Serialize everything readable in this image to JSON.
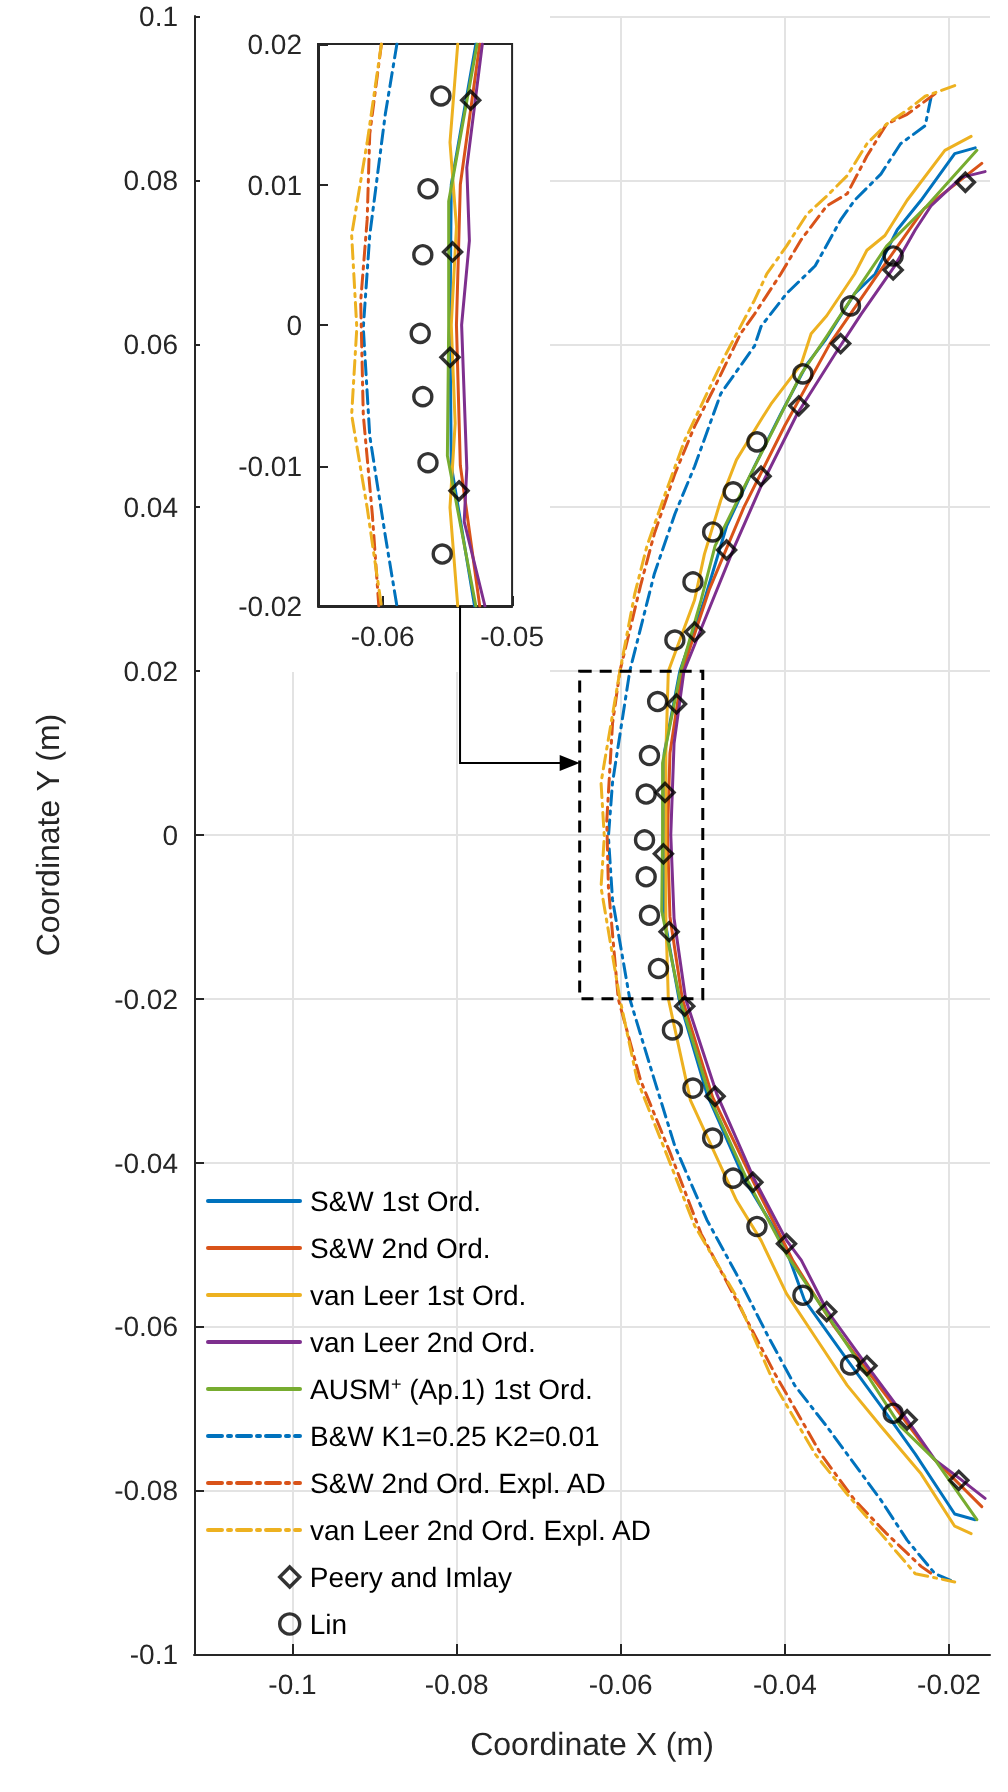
{
  "chart_data": [
    {
      "type": "line",
      "xlabel": "Coordinate X (m)",
      "ylabel": "Coordinate Y (m)",
      "xlim": [
        -0.112,
        -0.015
      ],
      "ylim": [
        -0.1,
        0.1
      ],
      "xticks": [
        -0.1,
        -0.08,
        -0.06,
        -0.04,
        -0.02
      ],
      "yticks": [
        -0.1,
        -0.08,
        -0.06,
        -0.04,
        -0.02,
        0,
        0.02,
        0.04,
        0.06,
        0.08,
        0.1
      ],
      "grid": true,
      "legend": "bottom left",
      "series": [
        {
          "name": "S&W 1st Ord.",
          "color": "#0072bd",
          "type": "line",
          "marker": "none",
          "line_style": "solid",
          "x": [
            -0.0168,
            -0.0193,
            -0.0234,
            -0.0263,
            -0.029,
            -0.0315,
            -0.0351,
            -0.0373,
            -0.0405,
            -0.0437,
            -0.0471,
            -0.0498,
            -0.0528,
            -0.0547,
            -0.0548,
            -0.0547,
            -0.0529,
            -0.0495,
            -0.0449,
            -0.04,
            -0.0376,
            -0.0324,
            -0.0283,
            -0.0241,
            -0.0193,
            -0.0168
          ],
          "values": [
            0.0839,
            0.0832,
            0.0775,
            0.0739,
            0.0685,
            0.0661,
            0.0604,
            0.0575,
            0.0514,
            0.045,
            0.0377,
            0.0287,
            0.02,
            0.01,
            0,
            -0.01,
            -0.02,
            -0.0316,
            -0.0421,
            -0.0502,
            -0.0568,
            -0.0641,
            -0.0697,
            -0.0756,
            -0.0829,
            -0.0836
          ]
        },
        {
          "name": "S&W 2nd Ord.",
          "color": "#d95319",
          "type": "line",
          "marker": "none",
          "line_style": "solid",
          "x": [
            -0.016,
            -0.023,
            -0.029,
            -0.0345,
            -0.04,
            -0.045,
            -0.0492,
            -0.0525,
            -0.054,
            -0.0543,
            -0.054,
            -0.0525,
            -0.0488,
            -0.044,
            -0.039,
            -0.034,
            -0.028,
            -0.022,
            -0.016
          ],
          "values": [
            0.082,
            0.0765,
            0.068,
            0.06,
            0.05,
            0.04,
            0.03,
            0.02,
            0.01,
            0,
            -0.01,
            -0.02,
            -0.032,
            -0.042,
            -0.052,
            -0.06,
            -0.068,
            -0.076,
            -0.082
          ]
        },
        {
          "name": "van Leer 1st Ord.",
          "color": "#edb120",
          "type": "line",
          "marker": "none",
          "line_style": "solid",
          "x": [
            -0.0173,
            -0.0205,
            -0.0251,
            -0.0278,
            -0.03,
            -0.0315,
            -0.0349,
            -0.0368,
            -0.038,
            -0.0417,
            -0.0429,
            -0.0459,
            -0.0478,
            -0.0498,
            -0.051,
            -0.0542,
            -0.0545,
            -0.0545,
            -0.0545,
            -0.0542,
            -0.0515,
            -0.0459,
            -0.0429,
            -0.0398,
            -0.0361,
            -0.0324,
            -0.0283,
            -0.0234,
            -0.0193,
            -0.0173
          ],
          "values": [
            0.0853,
            0.0836,
            0.0775,
            0.0732,
            0.0714,
            0.0685,
            0.0634,
            0.0612,
            0.0575,
            0.0526,
            0.0507,
            0.0458,
            0.0409,
            0.0343,
            0.0287,
            0.02,
            0.01,
            0,
            -0.01,
            -0.02,
            -0.0324,
            -0.0446,
            -0.0495,
            -0.056,
            -0.0616,
            -0.0672,
            -0.0722,
            -0.078,
            -0.0844,
            -0.0853
          ]
        },
        {
          "name": "van Leer 2nd Ord.",
          "color": "#7e2f8e",
          "type": "line",
          "marker": "none",
          "line_style": "solid",
          "x": [
            -0.0156,
            -0.0185,
            -0.0222,
            -0.0241,
            -0.0266,
            -0.0307,
            -0.0339,
            -0.0385,
            -0.0429,
            -0.0461,
            -0.0485,
            -0.0523,
            -0.0535,
            -0.0539,
            -0.0535,
            -0.0521,
            -0.0483,
            -0.0437,
            -0.0398,
            -0.038,
            -0.0349,
            -0.03,
            -0.0251,
            -0.0217,
            -0.0188,
            -0.0156
          ],
          "values": [
            0.081,
            0.0803,
            0.0768,
            0.0739,
            0.0695,
            0.0636,
            0.0587,
            0.0514,
            0.0426,
            0.0353,
            0.0294,
            0.02,
            0.0112,
            0,
            -0.0102,
            -0.02,
            -0.0316,
            -0.0421,
            -0.0495,
            -0.0519,
            -0.058,
            -0.0648,
            -0.0714,
            -0.0763,
            -0.0785,
            -0.081
          ]
        },
        {
          "name": "AUSM$^{+}$ (Ap.1) 1st Ord.",
          "color": "#77ac30",
          "type": "line",
          "marker": "none",
          "line_style": "solid",
          "x": [
            -0.0166,
            -0.0227,
            -0.0276,
            -0.0315,
            -0.0349,
            -0.038,
            -0.0412,
            -0.0454,
            -0.0485,
            -0.0502,
            -0.0527,
            -0.0549,
            -0.0549,
            -0.055,
            -0.0528,
            -0.049,
            -0.0446,
            -0.0398,
            -0.0349,
            -0.0307,
            -0.0259,
            -0.0217,
            -0.0166
          ],
          "values": [
            0.0836,
            0.0768,
            0.0719,
            0.0661,
            0.0609,
            0.0563,
            0.0499,
            0.0416,
            0.0353,
            0.0287,
            0.02,
            0.0088,
            0,
            -0.0093,
            -0.02,
            -0.0324,
            -0.0421,
            -0.0512,
            -0.0585,
            -0.0648,
            -0.0722,
            -0.0763,
            -0.0836
          ]
        },
        {
          "name": "B&W K1=0.25 K2=0.01",
          "color": "#0072bd",
          "type": "line",
          "marker": "none",
          "line_style": "dashdot",
          "x": [
            -0.0222,
            -0.0229,
            -0.0259,
            -0.0283,
            -0.0315,
            -0.0332,
            -0.0363,
            -0.0398,
            -0.0429,
            -0.0437,
            -0.0478,
            -0.051,
            -0.0534,
            -0.0559,
            -0.0589,
            -0.061,
            -0.0615,
            -0.061,
            -0.0589,
            -0.0559,
            -0.0534,
            -0.0495,
            -0.0459,
            -0.0422,
            -0.0388,
            -0.0349,
            -0.0283,
            -0.0251,
            -0.0217,
            -0.0198
          ],
          "values": [
            0.09,
            0.0866,
            0.0844,
            0.0807,
            0.0775,
            0.0751,
            0.0695,
            0.0661,
            0.0621,
            0.0597,
            0.0539,
            0.045,
            0.0392,
            0.0319,
            0.02,
            0.0064,
            -0.0002,
            -0.0079,
            -0.02,
            -0.0299,
            -0.038,
            -0.047,
            -0.0536,
            -0.0609,
            -0.0672,
            -0.0722,
            -0.0812,
            -0.0861,
            -0.0902,
            -0.091
          ]
        },
        {
          "name": "S&W 2nd Ord. Expl. AD",
          "color": "#d95319",
          "type": "line",
          "marker": "none",
          "line_style": "dashdot",
          "x": [
            -0.0217,
            -0.0251,
            -0.0276,
            -0.03,
            -0.0324,
            -0.0349,
            -0.038,
            -0.0405,
            -0.0437,
            -0.0454,
            -0.0485,
            -0.051,
            -0.0534,
            -0.0559,
            -0.0576,
            -0.0601,
            -0.061,
            -0.0617,
            -0.0615,
            -0.0603,
            -0.0576,
            -0.0539,
            -0.0502,
            -0.0459,
            -0.0412,
            -0.0356,
            -0.0315,
            -0.0276,
            -0.0234,
            -0.0217
          ],
          "values": [
            0.0905,
            0.088,
            0.0868,
            0.0829,
            0.0783,
            0.0768,
            0.0727,
            0.0685,
            0.0636,
            0.0612,
            0.0548,
            0.0499,
            0.0441,
            0.0368,
            0.0304,
            0.02,
            0.0136,
            0.0017,
            -0.0064,
            -0.02,
            -0.0299,
            -0.039,
            -0.0487,
            -0.0568,
            -0.0658,
            -0.0756,
            -0.0812,
            -0.0853,
            -0.0893,
            -0.0905
          ]
        },
        {
          "name": "van Leer 2nd Ord. Expl. AD",
          "color": "#edb120",
          "type": "line",
          "marker": "none",
          "line_style": "dashdot",
          "x": [
            -0.0193,
            -0.0229,
            -0.0251,
            -0.0276,
            -0.03,
            -0.0324,
            -0.0349,
            -0.0373,
            -0.0398,
            -0.0422,
            -0.0437,
            -0.0454,
            -0.0473,
            -0.0495,
            -0.0522,
            -0.0546,
            -0.0568,
            -0.0583,
            -0.0601,
            -0.0624,
            -0.062,
            -0.0624,
            -0.0601,
            -0.058,
            -0.0544,
            -0.051,
            -0.0461,
            -0.0412,
            -0.0363,
            -0.0324,
            -0.0283,
            -0.0241,
            -0.0193
          ],
          "values": [
            0.0915,
            0.0902,
            0.0885,
            0.0868,
            0.0844,
            0.0805,
            0.078,
            0.0758,
            0.0719,
            0.0685,
            0.0653,
            0.0621,
            0.0585,
            0.0539,
            0.0482,
            0.0416,
            0.0353,
            0.0294,
            0.02,
            0.0064,
            -0.0002,
            -0.0064,
            -0.02,
            -0.0299,
            -0.039,
            -0.0477,
            -0.056,
            -0.0672,
            -0.0756,
            -0.0805,
            -0.0853,
            -0.0902,
            -0.0912
          ]
        },
        {
          "name": "Peery and Imlay",
          "color": "#000000",
          "type": "scatter",
          "marker": "diamond",
          "x": [
            -0.018,
            -0.0268,
            -0.0332,
            -0.0383,
            -0.0429,
            -0.0471,
            -0.051,
            -0.0532,
            -0.0546,
            -0.0548,
            -0.0541,
            -0.0522,
            -0.0485,
            -0.0439,
            -0.0398,
            -0.0349,
            -0.03,
            -0.0251,
            -0.0188
          ],
          "values": [
            0.0797,
            0.069,
            0.06,
            0.0524,
            0.0438,
            0.0348,
            0.0248,
            0.016,
            0.0052,
            -0.0023,
            -0.0118,
            -0.0209,
            -0.0319,
            -0.0424,
            -0.0499,
            -0.0582,
            -0.0648,
            -0.0714,
            -0.0788
          ]
        },
        {
          "name": "Lin",
          "color": "#000000",
          "type": "scatter",
          "marker": "circle",
          "x": [
            -0.0268,
            -0.032,
            -0.0378,
            -0.0434,
            -0.0463,
            -0.0488,
            -0.0512,
            -0.0534,
            -0.0555,
            -0.0565,
            -0.0569,
            -0.0571,
            -0.0569,
            -0.0565,
            -0.0554,
            -0.0537,
            -0.0512,
            -0.0488,
            -0.0463,
            -0.0434,
            -0.0378,
            -0.032,
            -0.0268
          ],
          "values": [
            0.0707,
            0.0646,
            0.0563,
            0.048,
            0.0419,
            0.037,
            0.0309,
            0.0238,
            0.0163,
            0.0097,
            0.005,
            -0.0006,
            -0.0051,
            -0.0098,
            -0.0163,
            -0.0238,
            -0.0309,
            -0.037,
            -0.0419,
            -0.0478,
            -0.0562,
            -0.0647,
            -0.0706
          ]
        }
      ]
    },
    {
      "type": "line",
      "xlim": [
        -0.065,
        -0.05
      ],
      "ylim": [
        -0.02,
        0.02
      ],
      "xticks": [
        -0.06,
        -0.05
      ],
      "yticks": [
        -0.02,
        -0.01,
        0,
        0.01,
        0.02
      ],
      "series": [
        {
          "color": "#0072bd",
          "type": "line",
          "marker": "none",
          "line_style": "solid",
          "x": [
            -0.0528,
            -0.0547,
            -0.0548,
            -0.0547,
            -0.0529
          ],
          "values": [
            0.02,
            0.01,
            0,
            -0.01,
            -0.02
          ]
        },
        {
          "color": "#d95319",
          "type": "line",
          "marker": "none",
          "line_style": "solid",
          "x": [
            -0.0525,
            -0.054,
            -0.0543,
            -0.054,
            -0.0525
          ],
          "values": [
            0.02,
            0.01,
            0,
            -0.01,
            -0.02
          ]
        },
        {
          "color": "#edb120",
          "type": "line",
          "marker": "none",
          "line_style": "solid",
          "x": [
            -0.0542,
            -0.0548,
            -0.0543,
            -0.0547,
            -0.0544,
            -0.0548,
            -0.0542
          ],
          "values": [
            0.02,
            0.013,
            0.007,
            0,
            -0.007,
            -0.013,
            -0.02
          ]
        },
        {
          "color": "#7e2f8e",
          "type": "line",
          "marker": "none",
          "line_style": "solid",
          "x": [
            -0.0523,
            -0.0535,
            -0.0533,
            -0.0539,
            -0.0535,
            -0.0537,
            -0.0521
          ],
          "values": [
            0.02,
            0.0112,
            0.006,
            0,
            -0.0102,
            -0.014,
            -0.02
          ]
        },
        {
          "color": "#77ac30",
          "type": "line",
          "marker": "none",
          "line_style": "solid",
          "x": [
            -0.0527,
            -0.0549,
            -0.0549,
            -0.055,
            -0.0528
          ],
          "values": [
            0.02,
            0.0088,
            0,
            -0.0093,
            -0.02
          ]
        },
        {
          "color": "#0072bd",
          "type": "line",
          "marker": "none",
          "line_style": "dashdot",
          "x": [
            -0.0589,
            -0.0598,
            -0.061,
            -0.0615,
            -0.061,
            -0.0598,
            -0.0589
          ],
          "values": [
            0.02,
            0.015,
            0.0064,
            -0.0002,
            -0.0079,
            -0.015,
            -0.02
          ]
        },
        {
          "color": "#d95319",
          "type": "line",
          "marker": "none",
          "line_style": "dashdot",
          "x": [
            -0.0601,
            -0.061,
            -0.0612,
            -0.0617,
            -0.0615,
            -0.0608,
            -0.0603
          ],
          "values": [
            0.02,
            0.0136,
            0.0075,
            0.0017,
            -0.0064,
            -0.0135,
            -0.02
          ]
        },
        {
          "color": "#edb120",
          "type": "line",
          "marker": "none",
          "line_style": "dashdot",
          "x": [
            -0.0601,
            -0.0612,
            -0.0624,
            -0.062,
            -0.0624,
            -0.0612,
            -0.0601
          ],
          "values": [
            0.02,
            0.013,
            0.0064,
            -0.0002,
            -0.0064,
            -0.013,
            -0.02
          ]
        },
        {
          "color": "#000000",
          "type": "scatter",
          "marker": "diamond",
          "x": [
            -0.0532,
            -0.0546,
            -0.0548,
            -0.0541
          ],
          "values": [
            0.016,
            0.0052,
            -0.0023,
            -0.0118
          ]
        },
        {
          "color": "#000000",
          "type": "scatter",
          "marker": "circle",
          "x": [
            -0.0555,
            -0.0565,
            -0.0569,
            -0.0571,
            -0.0569,
            -0.0565,
            -0.0554
          ],
          "values": [
            0.0163,
            0.0097,
            0.005,
            -0.0006,
            -0.0051,
            -0.0098,
            -0.0163
          ]
        }
      ]
    }
  ]
}
